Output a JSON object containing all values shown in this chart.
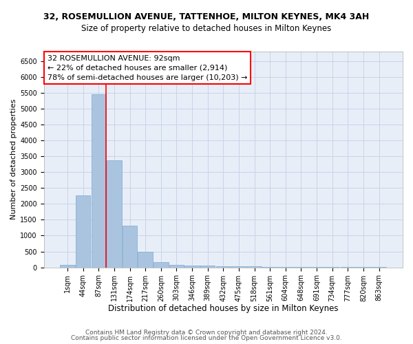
{
  "title": "32, ROSEMULLION AVENUE, TATTENHOE, MILTON KEYNES, MK4 3AH",
  "subtitle": "Size of property relative to detached houses in Milton Keynes",
  "xlabel": "Distribution of detached houses by size in Milton Keynes",
  "ylabel": "Number of detached properties",
  "footer1": "Contains HM Land Registry data © Crown copyright and database right 2024.",
  "footer2": "Contains public sector information licensed under the Open Government Licence v3.0.",
  "bins": [
    "1sqm",
    "44sqm",
    "87sqm",
    "131sqm",
    "174sqm",
    "217sqm",
    "260sqm",
    "303sqm",
    "346sqm",
    "389sqm",
    "432sqm",
    "475sqm",
    "518sqm",
    "561sqm",
    "604sqm",
    "648sqm",
    "691sqm",
    "734sqm",
    "777sqm",
    "820sqm",
    "863sqm"
  ],
  "values": [
    70,
    2270,
    5460,
    3380,
    1310,
    480,
    170,
    85,
    65,
    55,
    45,
    35,
    30,
    20,
    15,
    12,
    10,
    8,
    6,
    5,
    4
  ],
  "bar_color": "#aac4e0",
  "bar_edge_color": "#7aaad0",
  "grid_color": "#c8d4e8",
  "background_color": "#e8eef8",
  "annotation_text": "32 ROSEMULLION AVENUE: 92sqm\n← 22% of detached houses are smaller (2,914)\n78% of semi-detached houses are larger (10,203) →",
  "vline_x": 2.48,
  "ylim": [
    0,
    6800
  ],
  "yticks": [
    0,
    500,
    1000,
    1500,
    2000,
    2500,
    3000,
    3500,
    4000,
    4500,
    5000,
    5500,
    6000,
    6500
  ],
  "title_fontsize": 9,
  "subtitle_fontsize": 8.5,
  "xlabel_fontsize": 8.5,
  "ylabel_fontsize": 8,
  "annotation_fontsize": 8,
  "tick_fontsize": 7,
  "footer_fontsize": 6.5
}
